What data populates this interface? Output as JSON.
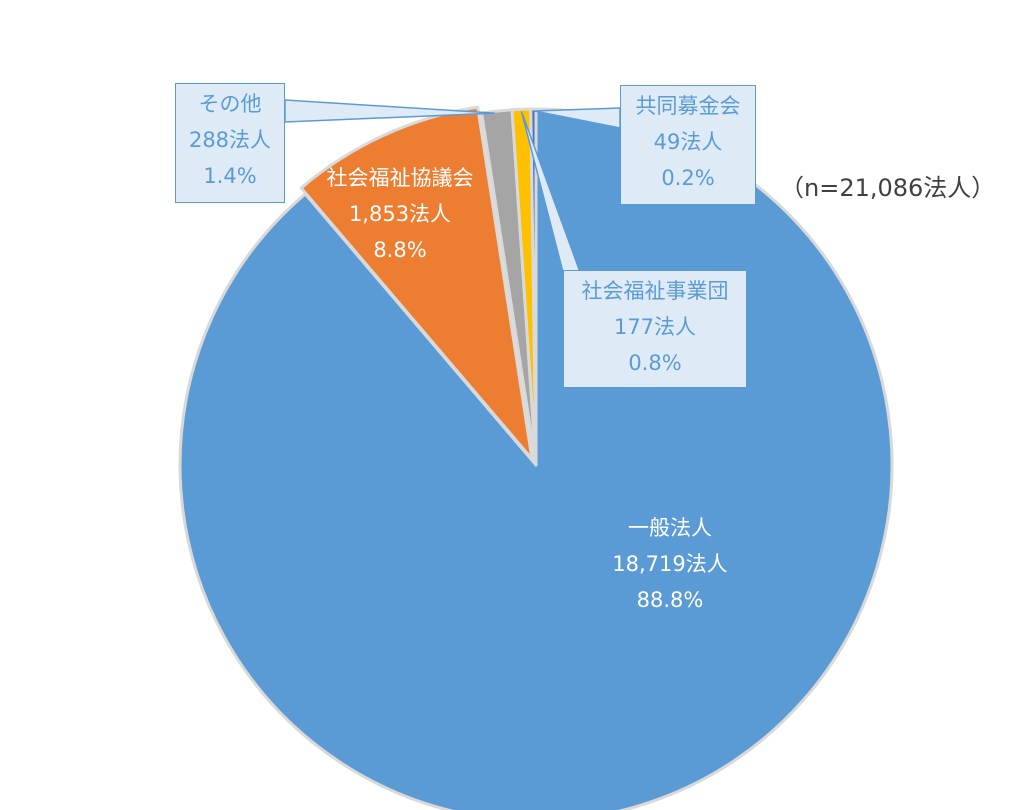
{
  "chart_data": {
    "type": "pie",
    "title": "",
    "note": "（n=21,086法人）",
    "slices": [
      {
        "key": "ippan",
        "name": "一般法人",
        "count_label": "18,719法人",
        "value": 18719,
        "percent": "88.8%",
        "color": "#5b9bd5"
      },
      {
        "key": "shakyo",
        "name": "社会福祉協議会",
        "count_label": "1,853法人",
        "value": 1853,
        "percent": "8.8%",
        "color": "#ed7d31"
      },
      {
        "key": "other",
        "name": "その他",
        "count_label": "288法人",
        "value": 288,
        "percent": "1.4%",
        "color": "#a5a5a5"
      },
      {
        "key": "jigyodan",
        "name": "社会福祉事業団",
        "count_label": "177法人",
        "value": 177,
        "percent": "0.8%",
        "color": "#ffc000"
      },
      {
        "key": "kyodo",
        "name": "共同募金会",
        "count_label": "49法人",
        "value": 49,
        "percent": "0.2%",
        "color": "#4472c4"
      }
    ]
  }
}
